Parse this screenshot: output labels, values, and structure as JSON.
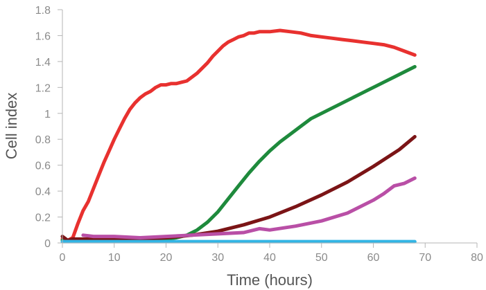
{
  "chart_data": {
    "type": "line",
    "title": "",
    "xlabel": "Time (hours)",
    "ylabel": "Cell index",
    "xlim": [
      0,
      80
    ],
    "ylim": [
      0,
      1.8
    ],
    "xticks": [
      0,
      10,
      20,
      30,
      40,
      50,
      60,
      70,
      80
    ],
    "xtick_labels": [
      "0",
      "10",
      "20",
      "30",
      "40",
      "50",
      "60",
      "70",
      "80"
    ],
    "yticks": [
      0,
      0.2,
      0.4,
      0.6,
      0.8,
      1.0,
      1.2,
      1.4,
      1.6,
      1.8
    ],
    "ytick_labels": [
      "0",
      "0.2",
      "0.4",
      "0.6",
      "0.8",
      "1",
      "1.2",
      "1.4",
      "1.6",
      "1.8"
    ],
    "grid": false,
    "legend": "none",
    "series": [
      {
        "color": "#e8312f",
        "x": [
          0,
          1,
          2,
          3,
          4,
          5,
          6,
          7,
          8,
          9,
          10,
          11,
          12,
          13,
          14,
          15,
          16,
          17,
          18,
          19,
          20,
          21,
          22,
          23,
          24,
          25,
          26,
          27,
          28,
          29,
          30,
          31,
          32,
          33,
          34,
          35,
          36,
          37,
          38,
          40,
          42,
          44,
          46,
          48,
          50,
          52,
          54,
          56,
          58,
          60,
          62,
          64,
          66,
          68
        ],
        "y": [
          0.03,
          0.02,
          0.04,
          0.15,
          0.25,
          0.32,
          0.42,
          0.52,
          0.62,
          0.71,
          0.8,
          0.88,
          0.96,
          1.03,
          1.08,
          1.12,
          1.15,
          1.17,
          1.2,
          1.22,
          1.22,
          1.23,
          1.23,
          1.24,
          1.25,
          1.28,
          1.31,
          1.35,
          1.39,
          1.44,
          1.48,
          1.52,
          1.55,
          1.57,
          1.59,
          1.6,
          1.62,
          1.62,
          1.63,
          1.63,
          1.64,
          1.63,
          1.62,
          1.6,
          1.59,
          1.58,
          1.57,
          1.56,
          1.55,
          1.54,
          1.53,
          1.51,
          1.48,
          1.45
        ]
      },
      {
        "color": "#1e8a3c",
        "x": [
          0,
          5,
          10,
          15,
          20,
          22,
          24,
          26,
          28,
          30,
          32,
          34,
          36,
          38,
          40,
          42,
          44,
          46,
          48,
          50,
          52,
          54,
          56,
          58,
          60,
          62,
          64,
          66,
          68
        ],
        "y": [
          0.02,
          0.02,
          0.02,
          0.02,
          0.03,
          0.04,
          0.06,
          0.1,
          0.16,
          0.24,
          0.34,
          0.44,
          0.54,
          0.63,
          0.71,
          0.78,
          0.84,
          0.9,
          0.96,
          1.0,
          1.04,
          1.08,
          1.12,
          1.16,
          1.2,
          1.24,
          1.28,
          1.32,
          1.36
        ]
      },
      {
        "color": "#7b1416",
        "x": [
          0,
          1,
          2,
          5,
          10,
          15,
          20,
          25,
          30,
          35,
          40,
          45,
          50,
          55,
          60,
          65,
          68
        ],
        "y": [
          0.05,
          0.02,
          0.03,
          0.03,
          0.03,
          0.03,
          0.04,
          0.06,
          0.09,
          0.14,
          0.2,
          0.28,
          0.37,
          0.47,
          0.59,
          0.72,
          0.82
        ]
      },
      {
        "color": "#b94fa6",
        "x": [
          4,
          6,
          10,
          15,
          20,
          25,
          30,
          35,
          38,
          40,
          45,
          50,
          55,
          60,
          62,
          64,
          66,
          68
        ],
        "y": [
          0.06,
          0.05,
          0.05,
          0.04,
          0.05,
          0.06,
          0.07,
          0.08,
          0.11,
          0.1,
          0.13,
          0.17,
          0.23,
          0.33,
          0.38,
          0.44,
          0.46,
          0.5
        ]
      },
      {
        "color": "#32b5e5",
        "x": [
          0,
          10,
          20,
          30,
          40,
          50,
          60,
          68
        ],
        "y": [
          0.01,
          0.01,
          0.01,
          0.01,
          0.01,
          0.01,
          0.01,
          0.01
        ]
      }
    ]
  }
}
